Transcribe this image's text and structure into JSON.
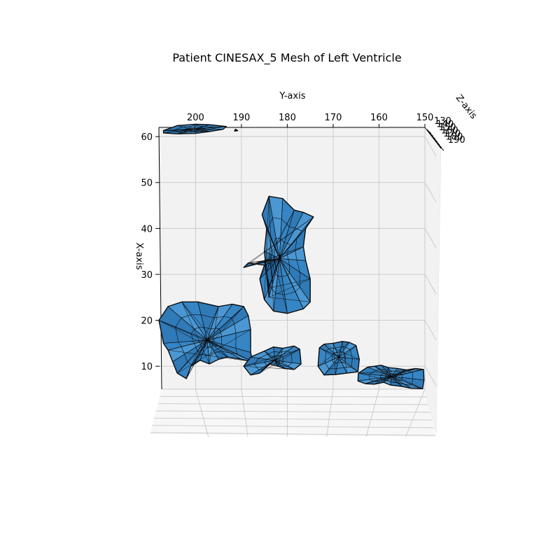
{
  "chart_data": {
    "type": "3d-mesh",
    "title": "Patient CINESAX_5 Mesh of Left Ventricle",
    "xlabel": "Y-axis",
    "ylabel": "X-axis",
    "zlabel": "Z-axis",
    "y_axis_ticks": [
      "200",
      "190",
      "180",
      "170",
      "160",
      "150"
    ],
    "x_axis_ticks": [
      "10",
      "20",
      "30",
      "40",
      "50",
      "60"
    ],
    "z_axis_ticks": [
      "130",
      "140",
      "150",
      "160",
      "170",
      "180",
      "190"
    ],
    "y_axis_range": [
      208,
      150
    ],
    "x_axis_range": [
      5,
      62
    ],
    "grid": true,
    "mesh": {
      "face_color": "#3b8fd0",
      "edge_color": "#0a0a0a",
      "background_color": "#f2f2f2"
    },
    "components": [
      {
        "id": "top-sliver",
        "y_range": [
          207,
          193
        ],
        "x_range": [
          60.5,
          62.7
        ]
      },
      {
        "id": "top-speck",
        "y_range": [
          191.5,
          190.8
        ],
        "x_range": [
          61.0,
          61.6
        ]
      },
      {
        "id": "upper-blob",
        "y_range": [
          189.5,
          174.3
        ],
        "x_range": [
          21.5,
          47.2
        ]
      },
      {
        "id": "left-blob",
        "y_range": [
          208,
          185.5
        ],
        "x_range": [
          7.3,
          24.0
        ]
      },
      {
        "id": "bottom-center",
        "y_range": [
          189.5,
          177.0
        ],
        "x_range": [
          8.0,
          14.5
        ]
      },
      {
        "id": "right-middle",
        "y_range": [
          173.0,
          164.3
        ],
        "x_range": [
          8.0,
          15.3
        ]
      },
      {
        "id": "right-low",
        "y_range": [
          164.5,
          150.3
        ],
        "x_range": [
          5.0,
          11.0
        ]
      }
    ]
  }
}
